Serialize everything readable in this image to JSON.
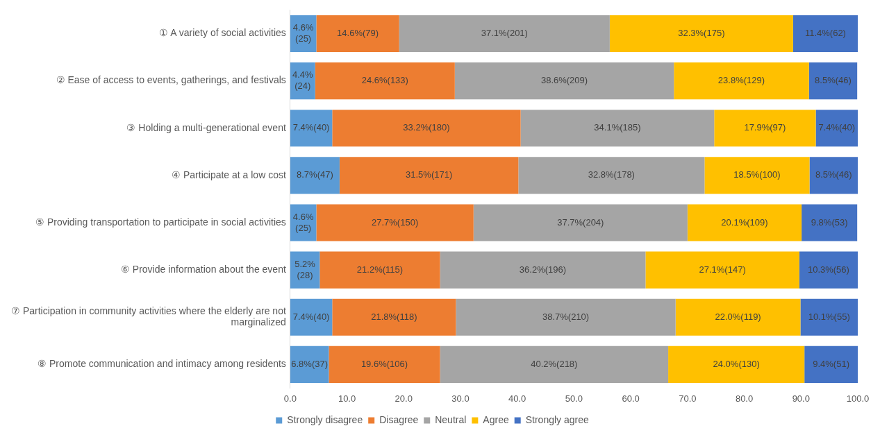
{
  "chart_data": {
    "type": "bar",
    "orientation": "horizontal",
    "stacked": true,
    "legend": "bottom",
    "grid": false,
    "categories": [
      "① A variety of social activities",
      "② Ease of access to events, gatherings, and festivals",
      "③ Holding a multi-generational event",
      "④ Participate at a low cost",
      "⑤ Providing transportation to participate in social activities",
      "⑥ Provide information about the event",
      "⑦ Participation in community activities where the elderly are not marginalized",
      "⑧ Promote communication and intimacy among residents"
    ],
    "xlim": [
      0,
      100
    ],
    "xticks": [
      {
        "value": 0,
        "label": "0.0"
      },
      {
        "value": 10,
        "label": "10.0"
      },
      {
        "value": 20,
        "label": "20.0"
      },
      {
        "value": 30,
        "label": "30.0"
      },
      {
        "value": 40,
        "label": "40.0"
      },
      {
        "value": 50,
        "label": "50.0"
      },
      {
        "value": 60,
        "label": "60.0"
      },
      {
        "value": 70,
        "label": "70.0"
      },
      {
        "value": 80,
        "label": "80.0"
      },
      {
        "value": 90,
        "label": "90.0"
      },
      {
        "value": 100,
        "label": "100.0"
      }
    ],
    "series": [
      {
        "name": "Strongly disagree",
        "color": "#5b9bd5",
        "values": [
          4.6,
          4.4,
          7.4,
          8.7,
          4.6,
          5.2,
          7.4,
          6.8
        ],
        "value_labels": [
          "4.6%(25)",
          "4.4%(24)",
          "7.4%(40)",
          "8.7%(47)",
          "4.6%(25)",
          "5.2%(28)",
          "7.4%(40)",
          "6.8%(37)"
        ]
      },
      {
        "name": "Disagree",
        "color": "#ed7d31",
        "values": [
          14.6,
          24.6,
          33.2,
          31.5,
          27.7,
          21.2,
          21.8,
          19.6
        ],
        "value_labels": [
          "14.6%(79)",
          "24.6%(133)",
          "33.2%(180)",
          "31.5%(171)",
          "27.7%(150)",
          "21.2%(115)",
          "21.8%(118)",
          "19.6%(106)"
        ]
      },
      {
        "name": "Neutral",
        "color": "#a5a5a5",
        "values": [
          37.1,
          38.6,
          34.1,
          32.8,
          37.7,
          36.2,
          38.7,
          40.2
        ],
        "value_labels": [
          "37.1%(201)",
          "38.6%(209)",
          "34.1%(185)",
          "32.8%(178)",
          "37.7%(204)",
          "36.2%(196)",
          "38.7%(210)",
          "40.2%(218)"
        ]
      },
      {
        "name": "Agree",
        "color": "#ffc000",
        "values": [
          32.3,
          23.8,
          17.9,
          18.5,
          20.1,
          27.1,
          22.0,
          24.0
        ],
        "value_labels": [
          "32.3%(175)",
          "23.8%(129)",
          "17.9%(97)",
          "18.5%(100)",
          "20.1%(109)",
          "27.1%(147)",
          "22.0%(119)",
          "24.0%(130)"
        ]
      },
      {
        "name": "Strongly agree",
        "color": "#4472c4",
        "values": [
          11.4,
          8.5,
          7.4,
          8.5,
          9.8,
          10.3,
          10.1,
          9.4
        ],
        "value_labels": [
          "11.4%(62)",
          "8.5%(46)",
          "7.4%(40)",
          "8.5%(46)",
          "9.8%(53)",
          "10.3%(56)",
          "10.1%(55)",
          "9.4%(51)"
        ]
      }
    ]
  }
}
